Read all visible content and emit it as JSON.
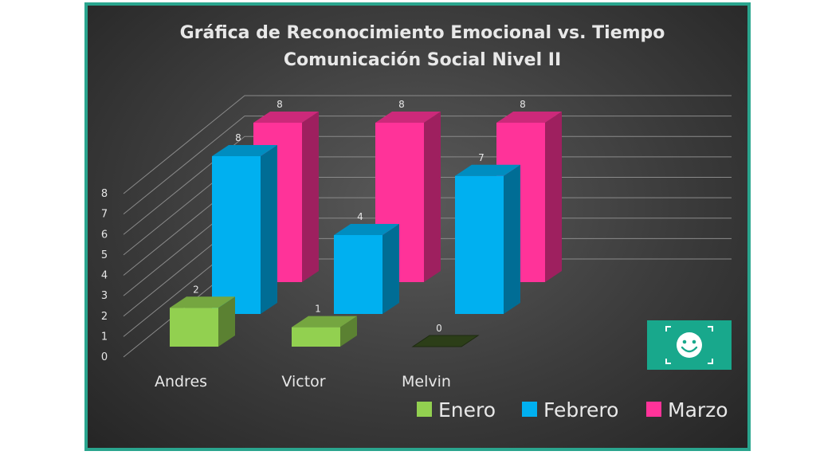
{
  "chart_data": {
    "type": "bar",
    "title": [
      "Gráfica de Reconocimiento Emocional vs. Tiempo",
      "Comunicación Social Nivel II"
    ],
    "categories": [
      "Andres",
      "Victor",
      "Melvin"
    ],
    "series": [
      {
        "name": "Enero",
        "values": [
          2,
          1,
          0
        ],
        "color": "#92d050"
      },
      {
        "name": "Febrero",
        "values": [
          8,
          4,
          7
        ],
        "color": "#00b0f0"
      },
      {
        "name": "Marzo",
        "values": [
          8,
          8,
          8
        ],
        "color": "#ff3399"
      }
    ],
    "ylim": [
      0,
      8
    ],
    "yticks": [
      "0",
      "1",
      "2",
      "3",
      "4",
      "5",
      "6",
      "7",
      "8"
    ],
    "grid": true,
    "legend_position": "bottom-right",
    "style": "3d-column"
  },
  "logo": {
    "icon": "smiley-face-icon",
    "color": "#18a88c"
  }
}
